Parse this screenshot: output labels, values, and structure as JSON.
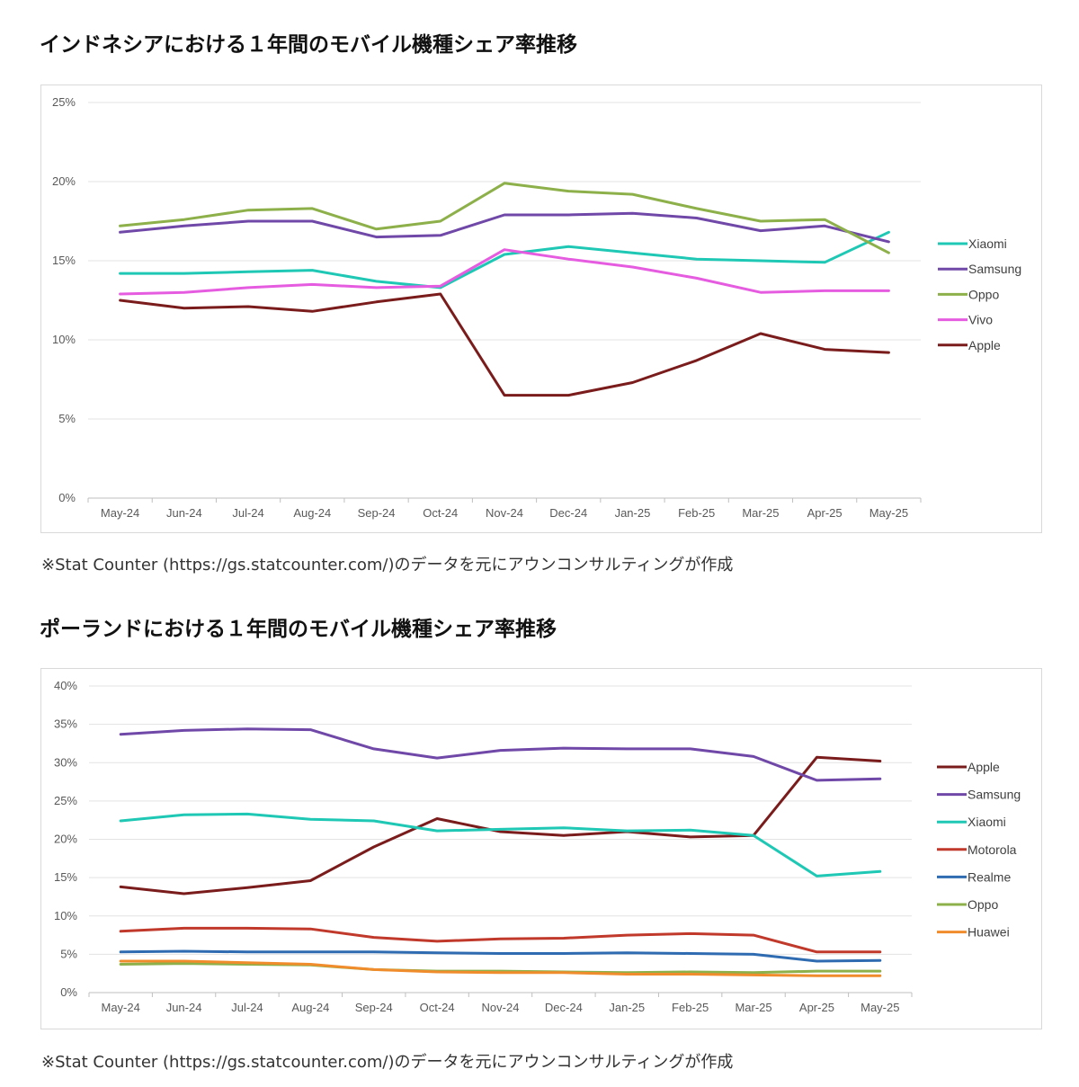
{
  "section1": {
    "title": "インドネシアにおける１年間のモバイル機種シェア率推移",
    "source": "※Stat Counter (https://gs.statcounter.com/)のデータを元にアウンコンサルティングが作成"
  },
  "section2": {
    "title": "ポーランドにおける１年間のモバイル機種シェア率推移",
    "source": "※Stat Counter (https://gs.statcounter.com/)のデータを元にアウンコンサルティングが作成"
  },
  "chart_data": [
    {
      "type": "line",
      "title": "",
      "xlabel": "",
      "ylabel": "",
      "ylim": [
        0,
        25
      ],
      "yticks": [
        0,
        5,
        10,
        15,
        20,
        25
      ],
      "ytick_labels": [
        "0%",
        "5%",
        "10%",
        "15%",
        "20%",
        "25%"
      ],
      "grid": true,
      "legend_position": "right",
      "categories": [
        "May-24",
        "Jun-24",
        "Jul-24",
        "Aug-24",
        "Sep-24",
        "Oct-24",
        "Nov-24",
        "Dec-24",
        "Jan-25",
        "Feb-25",
        "Mar-25",
        "Apr-25",
        "May-25"
      ],
      "series": [
        {
          "name": "Xiaomi",
          "color": "#1ec8b4",
          "values": [
            14.2,
            14.2,
            14.3,
            14.4,
            13.7,
            13.3,
            15.4,
            15.9,
            15.5,
            15.1,
            15.0,
            14.9,
            16.8
          ]
        },
        {
          "name": "Samsung",
          "color": "#7048a8",
          "values": [
            16.8,
            17.2,
            17.5,
            17.5,
            16.5,
            16.6,
            17.9,
            17.9,
            18.0,
            17.7,
            16.9,
            17.2,
            16.2
          ]
        },
        {
          "name": "Oppo",
          "color": "#8db04a",
          "values": [
            17.2,
            17.6,
            18.2,
            18.3,
            17.0,
            17.5,
            19.9,
            19.4,
            19.2,
            18.3,
            17.5,
            17.6,
            15.5
          ]
        },
        {
          "name": "Vivo",
          "color": "#e65ce0",
          "values": [
            12.9,
            13.0,
            13.3,
            13.5,
            13.3,
            13.4,
            15.7,
            15.1,
            14.6,
            13.9,
            13.0,
            13.1,
            13.1
          ]
        },
        {
          "name": "Apple",
          "color": "#7b1c1c",
          "values": [
            12.5,
            12.0,
            12.1,
            11.8,
            12.4,
            12.9,
            6.5,
            6.5,
            7.3,
            8.7,
            10.4,
            9.4,
            9.2
          ]
        }
      ]
    },
    {
      "type": "line",
      "title": "",
      "xlabel": "",
      "ylabel": "",
      "ylim": [
        0,
        40
      ],
      "yticks": [
        0,
        5,
        10,
        15,
        20,
        25,
        30,
        35,
        40
      ],
      "ytick_labels": [
        "0%",
        "5%",
        "10%",
        "15%",
        "20%",
        "25%",
        "30%",
        "35%",
        "40%"
      ],
      "grid": true,
      "legend_position": "right",
      "categories": [
        "May-24",
        "Jun-24",
        "Jul-24",
        "Aug-24",
        "Sep-24",
        "Oct-24",
        "Nov-24",
        "Dec-24",
        "Jan-25",
        "Feb-25",
        "Mar-25",
        "Apr-25",
        "May-25"
      ],
      "series": [
        {
          "name": "Apple",
          "color": "#7b1c1c",
          "values": [
            13.8,
            12.9,
            13.7,
            14.6,
            19.0,
            22.7,
            21.0,
            20.5,
            21.0,
            20.3,
            20.5,
            30.7,
            30.2
          ]
        },
        {
          "name": "Samsung",
          "color": "#7048a8",
          "values": [
            33.7,
            34.2,
            34.4,
            34.3,
            31.8,
            30.6,
            31.6,
            31.9,
            31.8,
            31.8,
            30.8,
            27.7,
            27.9
          ]
        },
        {
          "name": "Xiaomi",
          "color": "#1ec8b4",
          "values": [
            22.4,
            23.2,
            23.3,
            22.6,
            22.4,
            21.1,
            21.3,
            21.5,
            21.1,
            21.2,
            20.5,
            15.2,
            15.8
          ]
        },
        {
          "name": "Motorola",
          "color": "#c0392b",
          "values": [
            8.0,
            8.4,
            8.4,
            8.3,
            7.2,
            6.7,
            7.0,
            7.1,
            7.5,
            7.7,
            7.5,
            5.3,
            5.3
          ]
        },
        {
          "name": "Realme",
          "color": "#2e6bb0",
          "values": [
            5.3,
            5.4,
            5.3,
            5.3,
            5.3,
            5.2,
            5.1,
            5.1,
            5.2,
            5.1,
            5.0,
            4.1,
            4.2
          ]
        },
        {
          "name": "Oppo",
          "color": "#8db04a",
          "values": [
            3.7,
            3.8,
            3.7,
            3.6,
            3.0,
            2.8,
            2.8,
            2.7,
            2.6,
            2.7,
            2.6,
            2.8,
            2.8
          ]
        },
        {
          "name": "Huawei",
          "color": "#f08c2c",
          "values": [
            4.1,
            4.1,
            3.9,
            3.7,
            3.0,
            2.7,
            2.6,
            2.6,
            2.4,
            2.4,
            2.3,
            2.2,
            2.2
          ]
        }
      ]
    }
  ]
}
